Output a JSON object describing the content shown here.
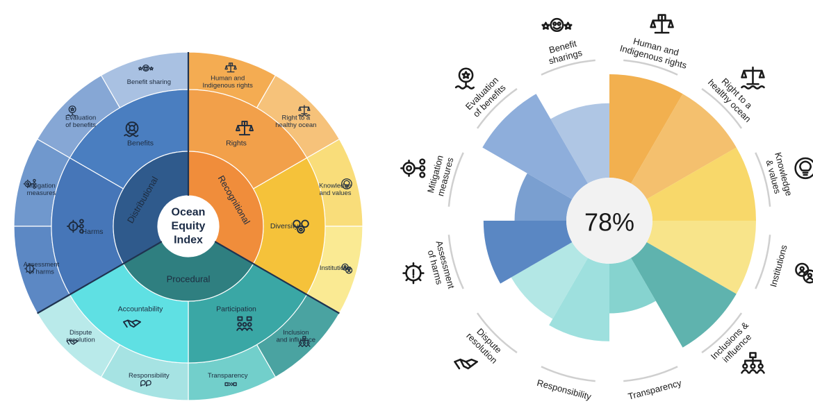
{
  "left": {
    "center_lines": [
      "Ocean",
      "Equity",
      "Index"
    ],
    "inner": [
      {
        "label": "Distributional",
        "color": "#2f5a8c"
      },
      {
        "label": "Recognitional",
        "color": "#f08d3b"
      },
      {
        "label": "Procedural",
        "color": "#2f7f80"
      }
    ],
    "middle": [
      {
        "label": "Benefits",
        "icon": "lifebuoy-icon",
        "color": "#4a7ec0"
      },
      {
        "label": "Harms",
        "icon": "harm-gear-icon",
        "color": "#4676b8"
      },
      {
        "label": "Rights",
        "icon": "rights-icon",
        "color": "#f2a04a"
      },
      {
        "label": "Diversity",
        "icon": "diversity-icon",
        "color": "#f5c23a"
      },
      {
        "label": "Participation",
        "icon": "participation-icon",
        "color": "#3aa7a5"
      },
      {
        "label": "Accountability",
        "icon": "handshake-icon",
        "color": "#5fe0e3"
      }
    ],
    "outer": [
      {
        "label": "Benefit sharing",
        "icon": "benefit-sharing-icon",
        "color": "#a9c1e2"
      },
      {
        "label": "Evaluation of benefits",
        "icon": "evaluation-icon",
        "color": "#86a7d5"
      },
      {
        "label": "Mitigation measures",
        "icon": "mitigation-icon",
        "color": "#7098cd"
      },
      {
        "label": "Assessment of harms",
        "icon": "assessment-gear-icon",
        "color": "#5c88c4"
      },
      {
        "label": "Human and Indigenous rights",
        "icon": "rights-icon",
        "color": "#f4ac52"
      },
      {
        "label": "Right to a healthy ocean",
        "icon": "scales-icon",
        "color": "#f6c27a"
      },
      {
        "label": "Knowledge and values",
        "icon": "lightbulb-icon",
        "color": "#f9dd7a"
      },
      {
        "label": "Institutions",
        "icon": "institutions-icon",
        "color": "#faea93"
      },
      {
        "label": "Inclusion and influence",
        "icon": "hierarchy-icon",
        "color": "#4aa3a1"
      },
      {
        "label": "Transparency",
        "icon": "transparency-icon",
        "color": "#72cfcb"
      },
      {
        "label": "Responsibility",
        "icon": "speech-bubbles-icon",
        "color": "#a6e3e3"
      },
      {
        "label": "Dispute resolution",
        "icon": "handshake-icon",
        "color": "#b9eaea"
      }
    ]
  },
  "right": {
    "center_value": "78%",
    "chart_data": {
      "type": "polar-area",
      "max": 100,
      "categories": [
        "Human and Indigenous rights",
        "Right to a healthy ocean",
        "Knowledge & values",
        "Institutions",
        "Inclusions & influence",
        "Transparency",
        "Responsibility",
        "Dispute resolution",
        "Assessment of harms",
        "Mitigation measures",
        "Evaluation of benefits",
        "Benefit sharings"
      ],
      "values": [
        100,
        100,
        100,
        100,
        100,
        48,
        75,
        68,
        80,
        50,
        100,
        72
      ],
      "colors": [
        "#f2b04f",
        "#f4c06e",
        "#f8d86a",
        "#f8e48a",
        "#5fb3ae",
        "#86d3cf",
        "#9ee0de",
        "#b3e7e5",
        "#5a87c3",
        "#7a9fd0",
        "#8eaedb",
        "#afc6e4"
      ]
    },
    "labels": [
      {
        "lines": [
          "Human and",
          "Indigenous rights"
        ],
        "icon": "rights-icon"
      },
      {
        "lines": [
          "Right to a",
          "healthy ocean"
        ],
        "icon": "scales-icon"
      },
      {
        "lines": [
          "Knowledge",
          "& values"
        ],
        "icon": "lightbulb-icon"
      },
      {
        "lines": [
          "Institutions"
        ],
        "icon": "institutions-icon"
      },
      {
        "lines": [
          "Inclusions &",
          "influence"
        ],
        "icon": "hierarchy-icon"
      },
      {
        "lines": [
          "Transparency"
        ],
        "icon": "transparency-icon"
      },
      {
        "lines": [
          "Responsibility"
        ],
        "icon": "speech-bubbles-icon"
      },
      {
        "lines": [
          "Dispute",
          "resolution"
        ],
        "icon": "handshake-icon"
      },
      {
        "lines": [
          "Assessment",
          "of harms"
        ],
        "icon": "assessment-gear-icon"
      },
      {
        "lines": [
          "Mitigation",
          "measures"
        ],
        "icon": "mitigation-icon"
      },
      {
        "lines": [
          "Evaluation",
          "of benefits"
        ],
        "icon": "evaluation-icon"
      },
      {
        "lines": [
          "Benefit",
          "sharings"
        ],
        "icon": "benefit-sharing-icon"
      }
    ]
  }
}
